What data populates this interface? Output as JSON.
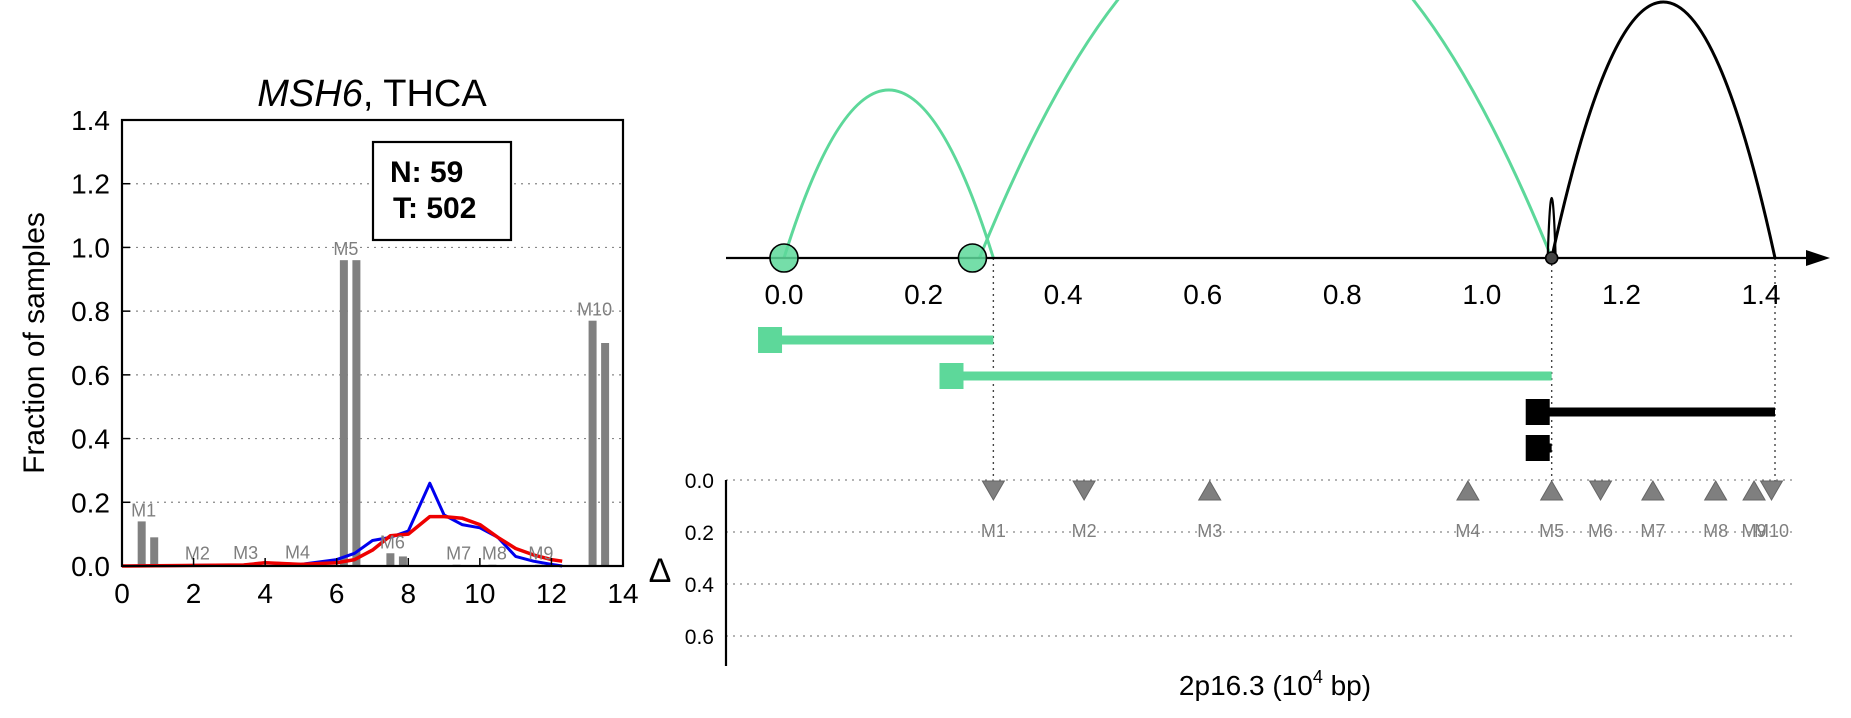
{
  "chart_data": [
    {
      "type": "bar",
      "title_gene": "MSH6",
      "title_rest": ", THCA",
      "ylabel": "Fraction of samples",
      "xlim": [
        0,
        14
      ],
      "ylim": [
        0,
        1.4
      ],
      "xticks": [
        "0",
        "2",
        "4",
        "6",
        "8",
        "10",
        "12",
        "14"
      ],
      "yticks": [
        "0.0",
        "0.2",
        "0.4",
        "0.6",
        "0.8",
        "1.0",
        "1.2",
        "1.4"
      ],
      "legend": {
        "normal": "N: 59",
        "tumor": "T: 502",
        "placement": "top-right"
      },
      "bars": [
        {
          "x": 0.55,
          "value": 0.14,
          "label": "M1"
        },
        {
          "x": 0.9,
          "value": 0.09
        },
        {
          "x": 2.05,
          "value": 0.005,
          "label": "M2"
        },
        {
          "x": 2.4,
          "value": 0.004
        },
        {
          "x": 3.4,
          "value": 0.006,
          "label": "M3"
        },
        {
          "x": 3.75,
          "value": 0.005
        },
        {
          "x": 4.85,
          "value": 0.008,
          "label": "M4"
        },
        {
          "x": 5.2,
          "value": 0.006
        },
        {
          "x": 6.2,
          "value": 0.96,
          "label": "M5"
        },
        {
          "x": 6.55,
          "value": 0.96
        },
        {
          "x": 7.5,
          "value": 0.04,
          "label": "M6"
        },
        {
          "x": 7.85,
          "value": 0.03
        },
        {
          "x": 9.35,
          "value": 0.004,
          "label": "M7"
        },
        {
          "x": 9.7,
          "value": 0.003
        },
        {
          "x": 10.35,
          "value": 0.004,
          "label": "M8"
        },
        {
          "x": 10.7,
          "value": 0.003
        },
        {
          "x": 11.65,
          "value": 0.004,
          "label": "M9"
        },
        {
          "x": 12.0,
          "value": 0.003
        },
        {
          "x": 13.15,
          "value": 0.77,
          "label": "M10"
        },
        {
          "x": 13.5,
          "value": 0.7
        }
      ],
      "series": [
        {
          "color": "#0000ee",
          "x": [
            0,
            3.4,
            4.0,
            5.0,
            6.0,
            6.5,
            7.0,
            7.5,
            8.0,
            8.6,
            9.0,
            9.5,
            10.0,
            10.5,
            11.0,
            11.5,
            12.0,
            12.3
          ],
          "y": [
            0.0,
            0.003,
            0.01,
            0.005,
            0.02,
            0.04,
            0.08,
            0.09,
            0.11,
            0.26,
            0.16,
            0.13,
            0.12,
            0.09,
            0.03,
            0.015,
            0.005,
            0.0
          ]
        },
        {
          "color": "#ee0000",
          "x": [
            0,
            3.4,
            4.0,
            5.0,
            6.0,
            6.5,
            7.0,
            7.5,
            8.0,
            8.6,
            9.0,
            9.5,
            10.0,
            10.5,
            11.0,
            11.5,
            12.0,
            12.3
          ],
          "y": [
            0.0,
            0.003,
            0.01,
            0.005,
            0.01,
            0.02,
            0.05,
            0.095,
            0.1,
            0.155,
            0.155,
            0.15,
            0.13,
            0.09,
            0.055,
            0.035,
            0.02,
            0.015
          ]
        }
      ]
    },
    {
      "type": "diagram",
      "xlabel_base": "2p16.3 (10",
      "xlabel_exp": "4",
      "xlabel_tail": " bp)",
      "delta_label": "Δ",
      "xlim": [
        0,
        1.42
      ],
      "xticks": [
        "0.0",
        "0.2",
        "0.4",
        "0.6",
        "0.8",
        "1.0",
        "1.2",
        "1.4"
      ],
      "delta_ticks": [
        "0.0",
        "0.2",
        "0.4",
        "0.6"
      ],
      "colors": {
        "green": "#5dd89a",
        "black": "#000000",
        "marker": "#7f7f7f"
      },
      "circles": [
        {
          "x": 0.0,
          "color": "green"
        },
        {
          "x": 0.27,
          "color": "green"
        },
        {
          "x": 1.1,
          "color": "black"
        }
      ],
      "arcs": [
        {
          "x1": 0.0,
          "x2": 0.3,
          "height": 0.42,
          "color": "green"
        },
        {
          "x1": 0.28,
          "x2": 1.1,
          "height": 0.88,
          "color": "green"
        },
        {
          "x1": 1.1,
          "x2": 1.42,
          "height": 0.64,
          "color": "black"
        }
      ],
      "isoforms": [
        {
          "x1": -0.02,
          "x2": 0.3,
          "color": "green"
        },
        {
          "x1": 0.24,
          "x2": 1.1,
          "color": "green"
        },
        {
          "x1": 1.08,
          "x2": 1.42,
          "color": "black"
        },
        {
          "x1": 1.08,
          "x2": 1.1,
          "color": "black"
        }
      ],
      "guides": [
        0.3,
        1.1,
        1.42
      ],
      "markers": [
        {
          "x": 0.3,
          "label": "M1",
          "dir": "down",
          "delta": 0.0
        },
        {
          "x": 0.43,
          "label": "M2",
          "dir": "down",
          "delta": 0.0
        },
        {
          "x": 0.61,
          "label": "M3",
          "dir": "up",
          "delta": 0.0
        },
        {
          "x": 0.98,
          "label": "M4",
          "dir": "up",
          "delta": 0.0
        },
        {
          "x": 1.1,
          "label": "M5",
          "dir": "up",
          "delta": 0.0
        },
        {
          "x": 1.17,
          "label": "M6",
          "dir": "down",
          "delta": 0.0
        },
        {
          "x": 1.245,
          "label": "M7",
          "dir": "up",
          "delta": 0.0
        },
        {
          "x": 1.335,
          "label": "M8",
          "dir": "up",
          "delta": 0.0
        },
        {
          "x": 1.39,
          "label": "M9",
          "dir": "up",
          "delta": 0.0
        },
        {
          "x": 1.415,
          "label": "M10",
          "dir": "down",
          "delta": 0.0
        }
      ]
    }
  ]
}
